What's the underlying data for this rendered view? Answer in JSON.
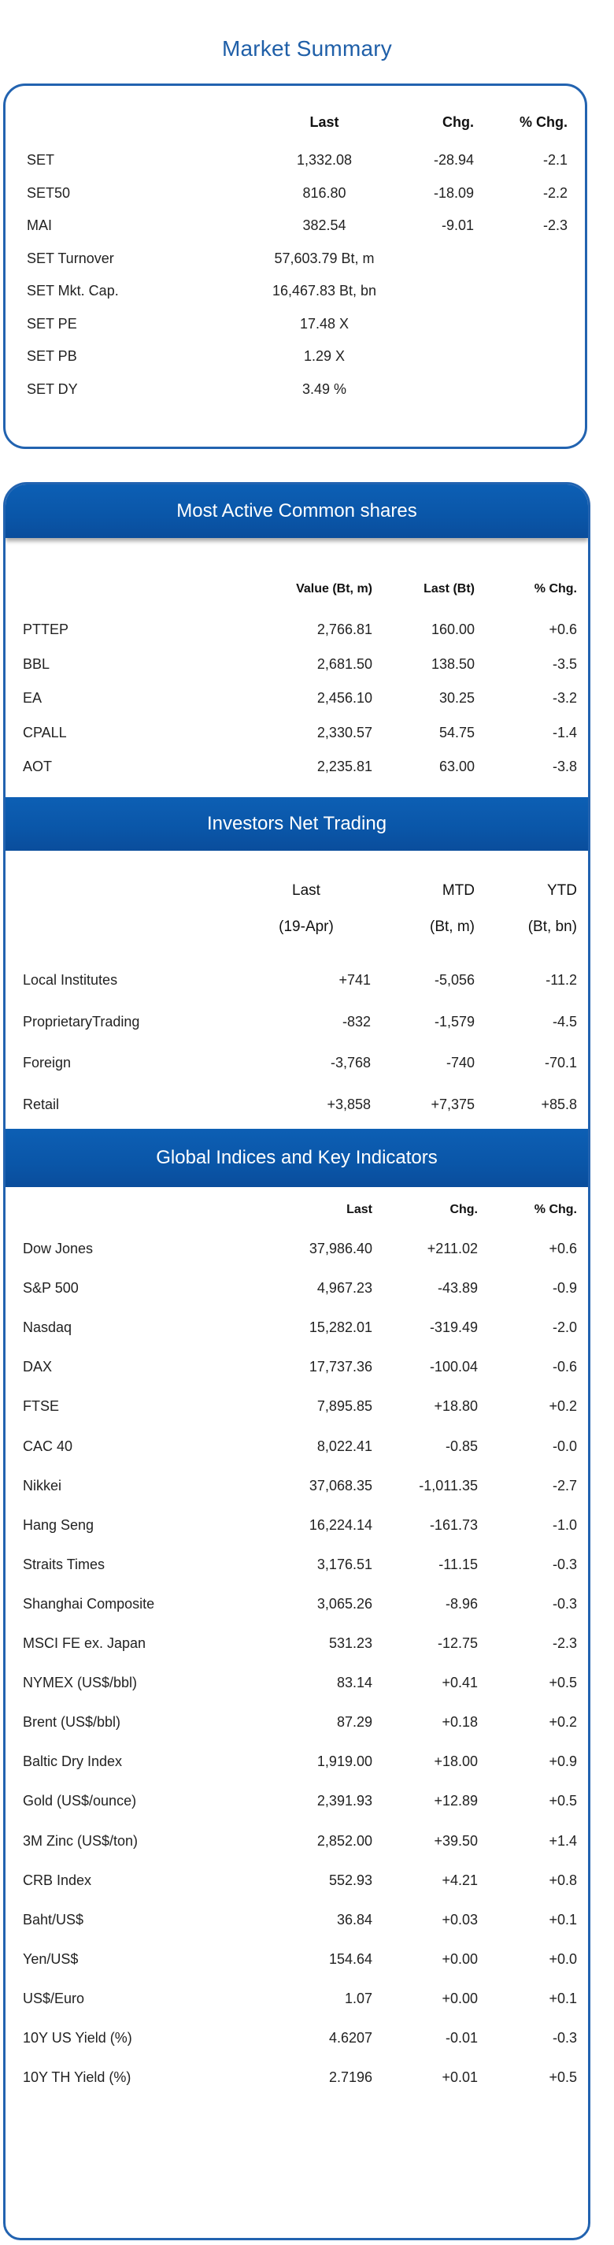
{
  "title": "Market Summary",
  "summary": {
    "headers": {
      "last": "Last",
      "chg": "Chg.",
      "pct": "% Chg."
    },
    "rows": [
      {
        "name": "SET",
        "last": "1,332.08",
        "chg": "-28.94",
        "pct": "-2.1"
      },
      {
        "name": "SET50",
        "last": "816.80",
        "chg": "-18.09",
        "pct": "-2.2"
      },
      {
        "name": "MAI",
        "last": "382.54",
        "chg": "-9.01",
        "pct": "-2.3"
      },
      {
        "name": "SET Turnover",
        "last": "57,603.79 Bt, m",
        "chg": "",
        "pct": ""
      },
      {
        "name": "SET Mkt. Cap.",
        "last": "16,467.83 Bt, bn",
        "chg": "",
        "pct": ""
      },
      {
        "name": "SET PE",
        "last": "17.48 X",
        "chg": "",
        "pct": ""
      },
      {
        "name": "SET PB",
        "last": "1.29 X",
        "chg": "",
        "pct": ""
      },
      {
        "name": "SET DY",
        "last": "3.49 %",
        "chg": "",
        "pct": ""
      }
    ]
  },
  "most_active": {
    "title": "Most Active Common shares",
    "headers": {
      "value": "Value (Bt, m)",
      "last": "Last (Bt)",
      "pct": "% Chg."
    },
    "rows": [
      {
        "name": "PTTEP",
        "value": "2,766.81",
        "last": "160.00",
        "pct": "+0.6"
      },
      {
        "name": "BBL",
        "value": "2,681.50",
        "last": "138.50",
        "pct": "-3.5"
      },
      {
        "name": "EA",
        "value": "2,456.10",
        "last": "30.25",
        "pct": "-3.2"
      },
      {
        "name": "CPALL",
        "value": "2,330.57",
        "last": "54.75",
        "pct": "-1.4"
      },
      {
        "name": "AOT",
        "value": "2,235.81",
        "last": "63.00",
        "pct": "-3.8"
      }
    ]
  },
  "investors": {
    "title": "Investors Net Trading",
    "headers": {
      "last": "Last",
      "mtd": "MTD",
      "ytd": "YTD",
      "date": "(19-Apr)",
      "mtd_unit": "(Bt, m)",
      "ytd_unit": "(Bt, bn)"
    },
    "rows": [
      {
        "name": "Local Institutes",
        "last": "+741",
        "mtd": "-5,056",
        "ytd": "-11.2"
      },
      {
        "name": "ProprietaryTrading",
        "last": "-832",
        "mtd": "-1,579",
        "ytd": "-4.5"
      },
      {
        "name": "Foreign",
        "last": "-3,768",
        "mtd": "-740",
        "ytd": "-70.1"
      },
      {
        "name": "Retail",
        "last": "+3,858",
        "mtd": "+7,375",
        "ytd": "+85.8"
      }
    ]
  },
  "global": {
    "title": "Global Indices and Key Indicators",
    "headers": {
      "last": "Last",
      "chg": "Chg.",
      "pct": "% Chg."
    },
    "rows": [
      {
        "name": "Dow Jones",
        "last": "37,986.40",
        "chg": "+211.02",
        "pct": "+0.6"
      },
      {
        "name": "S&P 500",
        "last": "4,967.23",
        "chg": "-43.89",
        "pct": "-0.9"
      },
      {
        "name": "Nasdaq",
        "last": "15,282.01",
        "chg": "-319.49",
        "pct": "-2.0"
      },
      {
        "name": "DAX",
        "last": "17,737.36",
        "chg": "-100.04",
        "pct": "-0.6"
      },
      {
        "name": "FTSE",
        "last": "7,895.85",
        "chg": "+18.80",
        "pct": "+0.2"
      },
      {
        "name": "CAC 40",
        "last": "8,022.41",
        "chg": "-0.85",
        "pct": "-0.0"
      },
      {
        "name": "Nikkei",
        "last": "37,068.35",
        "chg": "-1,011.35",
        "pct": "-2.7"
      },
      {
        "name": "Hang Seng",
        "last": "16,224.14",
        "chg": "-161.73",
        "pct": "-1.0"
      },
      {
        "name": "Straits Times",
        "last": "3,176.51",
        "chg": "-11.15",
        "pct": "-0.3"
      },
      {
        "name": "Shanghai Composite",
        "last": "3,065.26",
        "chg": "-8.96",
        "pct": "-0.3"
      },
      {
        "name": "MSCI FE ex. Japan",
        "last": "531.23",
        "chg": "-12.75",
        "pct": "-2.3"
      },
      {
        "name": "NYMEX (US$/bbl)",
        "last": "83.14",
        "chg": "+0.41",
        "pct": "+0.5"
      },
      {
        "name": "Brent (US$/bbl)",
        "last": "87.29",
        "chg": "+0.18",
        "pct": "+0.2"
      },
      {
        "name": "Baltic Dry Index",
        "last": "1,919.00",
        "chg": "+18.00",
        "pct": "+0.9"
      },
      {
        "name": "Gold (US$/ounce)",
        "last": "2,391.93",
        "chg": "+12.89",
        "pct": "+0.5"
      },
      {
        "name": "3M Zinc (US$/ton)",
        "last": "2,852.00",
        "chg": "+39.50",
        "pct": "+1.4"
      },
      {
        "name": "CRB Index",
        "last": "552.93",
        "chg": "+4.21",
        "pct": "+0.8"
      },
      {
        "name": "Baht/US$",
        "last": "36.84",
        "chg": "+0.03",
        "pct": "+0.1"
      },
      {
        "name": "Yen/US$",
        "last": "154.64",
        "chg": "+0.00",
        "pct": "+0.0"
      },
      {
        "name": "US$/Euro",
        "last": "1.07",
        "chg": "+0.00",
        "pct": "+0.1"
      },
      {
        "name": "10Y US Yield (%)",
        "last": "4.6207",
        "chg": "-0.01",
        "pct": "-0.3"
      },
      {
        "name": "10Y TH Yield (%)",
        "last": "2.7196",
        "chg": "+0.01",
        "pct": "+0.5"
      }
    ]
  },
  "colors": {
    "accent": "#2263b0",
    "band": "#0a56a8",
    "highlight": "#e02020"
  }
}
